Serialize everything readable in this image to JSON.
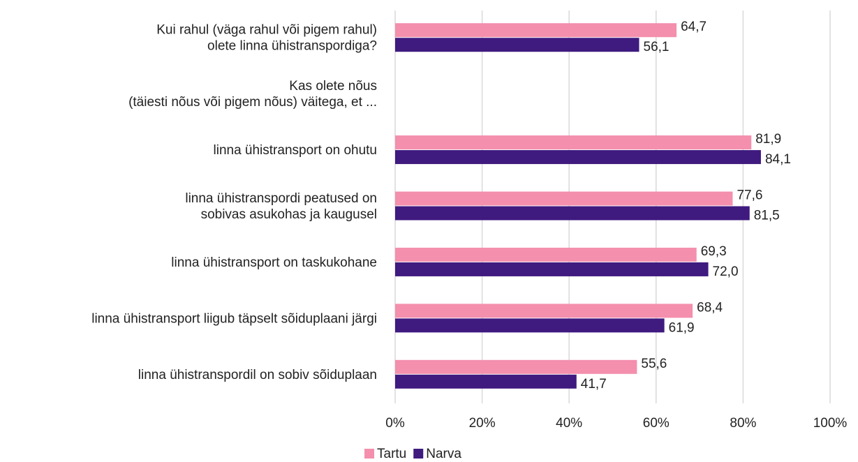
{
  "chart_data": {
    "type": "hbar",
    "categories": [
      "Kui rahul (väga rahul või pigem rahul)\nolete linna ühistranspordiga?",
      "Kas olete nõus\n(täiesti nõus või pigem nõus)  väitega, et ...",
      "linna ühistransport on ohutu",
      "linna ühistranspordi peatused on\nsobivas asukohas ja kaugusel",
      "linna ühistransport on taskukohane",
      "linna ühistransport liigub täpselt sõiduplaani järgi",
      "linna ühistranspordil on sobiv sõiduplaan"
    ],
    "series": [
      {
        "name": "Tartu",
        "color": "#f48fae",
        "values": [
          64.7,
          null,
          81.9,
          77.6,
          69.3,
          68.4,
          55.6
        ],
        "value_labels": [
          "64,7",
          null,
          "81,9",
          "77,6",
          "69,3",
          "68,4",
          "55,6"
        ]
      },
      {
        "name": "Narva",
        "color": "#3f1a7f",
        "values": [
          56.1,
          null,
          84.1,
          81.5,
          72.0,
          61.9,
          41.7
        ],
        "value_labels": [
          "56,1",
          null,
          "84,1",
          "81,5",
          "72,0",
          "61,9",
          "41,7"
        ]
      }
    ],
    "xlim": [
      0,
      100
    ],
    "xticks": [
      {
        "value": 0,
        "label": "0%"
      },
      {
        "value": 20,
        "label": "20%"
      },
      {
        "value": 40,
        "label": "40%"
      },
      {
        "value": 60,
        "label": "60%"
      },
      {
        "value": 80,
        "label": "80%"
      },
      {
        "value": 100,
        "label": "100%"
      }
    ],
    "grid": true,
    "legend": "bottom"
  }
}
